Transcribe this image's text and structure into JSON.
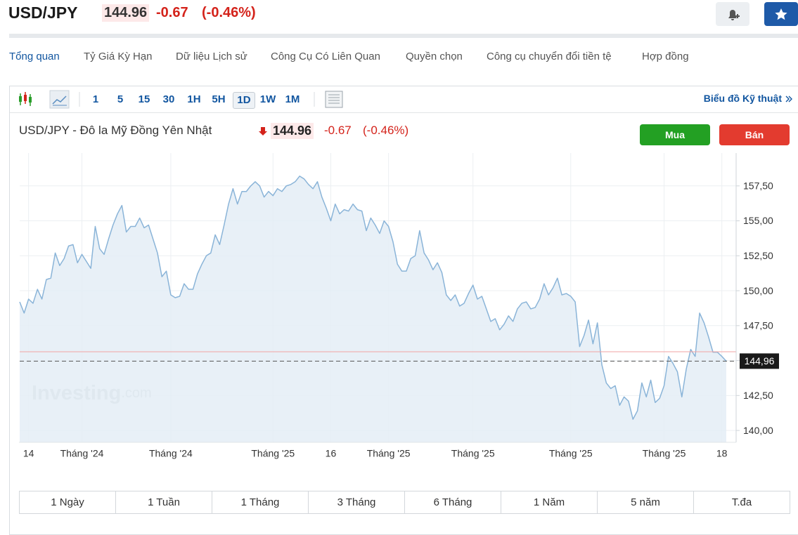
{
  "header": {
    "symbol": "USD/JPY",
    "price": "144.96",
    "change": "-0.67",
    "change_pct": "(-0.46%)"
  },
  "tabs": [
    "Tổng quan",
    "Tỷ Giá Kỳ Hạn",
    "Dữ liệu Lịch sử",
    "Công Cụ Có Liên Quan",
    "Quyền chọn",
    "Công cụ chuyển đổi tiền tệ",
    "Hợp đồng"
  ],
  "toolbar": {
    "intervals": [
      "1",
      "5",
      "15",
      "30",
      "1H",
      "5H",
      "1D",
      "1W",
      "1M"
    ],
    "link": "Biểu đồ Kỹ thuật"
  },
  "chart_quote": {
    "price": "144.96",
    "change": "-0.67",
    "change_pct": "(-0.46%)"
  },
  "buttons": [
    "Mua",
    "Bán"
  ],
  "watermark": {
    "brand": "Investing",
    "suffix": ".com"
  },
  "ranges": [
    "1 Ngày",
    "1 Tuần",
    "1 Tháng",
    "3 Tháng",
    "6 Tháng",
    "1 Năm",
    "5 năm",
    "T.đa"
  ],
  "chart_data": {
    "type": "area",
    "title": "USD/JPY - Đô la Mỹ Đồng Yên Nhật",
    "color": "#8ab4d8",
    "fill": "#e4edf6",
    "categories": [
      null,
      null,
      "14",
      null,
      null,
      null,
      null,
      null,
      null,
      null,
      null,
      null,
      null,
      null,
      "Tháng '24",
      null,
      null,
      null,
      null,
      null,
      null,
      null,
      null,
      null,
      null,
      null,
      null,
      null,
      null,
      null,
      null,
      null,
      null,
      null,
      "Tháng '24",
      null,
      null,
      null,
      null,
      null,
      null,
      null,
      null,
      null,
      null,
      null,
      null,
      null,
      null,
      null,
      null,
      null,
      null,
      null,
      null,
      null,
      null,
      "Tháng '25",
      null,
      null,
      null,
      null,
      null,
      null,
      null,
      null,
      null,
      null,
      null,
      null,
      "16",
      null,
      null,
      null,
      null,
      null,
      null,
      null,
      null,
      null,
      null,
      null,
      null,
      "Tháng '25",
      null,
      null,
      null,
      null,
      null,
      null,
      null,
      null,
      null,
      null,
      null,
      null,
      null,
      null,
      null,
      null,
      null,
      null,
      "Tháng '25",
      null,
      null,
      null,
      null,
      null,
      null,
      null,
      null,
      null,
      null,
      null,
      null,
      null,
      null,
      null,
      null,
      null,
      null,
      null,
      null,
      null,
      "Tháng '25",
      null,
      null,
      null,
      null,
      null,
      null,
      null,
      null,
      null,
      null,
      null,
      null,
      null,
      null,
      null,
      null,
      null,
      null,
      null,
      null,
      "Tháng '25",
      null,
      null,
      null,
      null,
      null,
      null,
      null,
      null,
      null,
      null,
      null,
      null,
      "18",
      null
    ],
    "values": [
      149.2,
      148.4,
      149.4,
      149.1,
      150.1,
      149.4,
      150.8,
      150.9,
      152.7,
      151.8,
      152.3,
      153.2,
      153.3,
      152.0,
      152.6,
      152.1,
      151.6,
      154.6,
      153.0,
      152.6,
      153.7,
      154.7,
      155.5,
      156.1,
      154.2,
      154.6,
      154.6,
      155.2,
      154.5,
      154.7,
      153.7,
      152.7,
      151.0,
      151.4,
      149.7,
      149.5,
      149.6,
      150.5,
      150.1,
      150.1,
      151.2,
      151.9,
      152.5,
      152.7,
      154.0,
      153.3,
      154.7,
      156.2,
      157.3,
      156.2,
      157.1,
      157.1,
      157.5,
      157.8,
      157.5,
      156.7,
      157.1,
      156.8,
      157.3,
      157.1,
      157.5,
      157.6,
      157.8,
      158.2,
      158.0,
      157.6,
      157.3,
      157.8,
      156.7,
      155.9,
      155.0,
      156.2,
      155.5,
      155.8,
      155.7,
      156.2,
      155.8,
      155.7,
      154.3,
      155.2,
      154.7,
      154.1,
      155.0,
      154.6,
      153.5,
      151.9,
      151.4,
      151.4,
      152.3,
      152.5,
      154.3,
      152.7,
      152.2,
      151.5,
      152.0,
      151.3,
      149.7,
      149.3,
      149.7,
      148.9,
      149.1,
      149.8,
      150.4,
      149.4,
      149.6,
      148.7,
      147.8,
      148.0,
      147.2,
      147.6,
      148.2,
      147.8,
      148.7,
      149.1,
      149.2,
      148.7,
      148.8,
      149.4,
      150.5,
      149.7,
      150.2,
      150.9,
      149.7,
      149.8,
      149.6,
      149.2,
      146.0,
      146.8,
      147.9,
      146.2,
      147.7,
      144.7,
      143.4,
      143.0,
      143.2,
      141.8,
      142.4,
      142.1,
      140.8,
      141.4,
      143.4,
      142.4,
      143.6,
      142.0,
      142.3,
      143.2,
      145.3,
      144.8,
      144.2,
      142.4,
      144.4,
      145.8,
      145.3,
      148.4,
      147.7,
      146.7,
      145.6,
      145.6,
      145.3,
      144.96
    ],
    "ylim": [
      139.15,
      159.85
    ],
    "yticks": [
      {
        "value": 140,
        "label": "140,00"
      },
      {
        "value": 142.5,
        "label": "142,50"
      },
      {
        "value": 145,
        "label": "145,00"
      },
      {
        "value": 147.5,
        "label": "147,50"
      },
      {
        "value": 150,
        "label": "150,00"
      },
      {
        "value": 152.5,
        "label": "152,50"
      },
      {
        "value": 155,
        "label": "155,00"
      },
      {
        "value": 157.5,
        "label": "157,50"
      }
    ],
    "grid": true,
    "last_value": {
      "value": 144.96,
      "label": "144,96"
    },
    "reference_line": 145.63,
    "reference_color": "#f2a3a3"
  }
}
